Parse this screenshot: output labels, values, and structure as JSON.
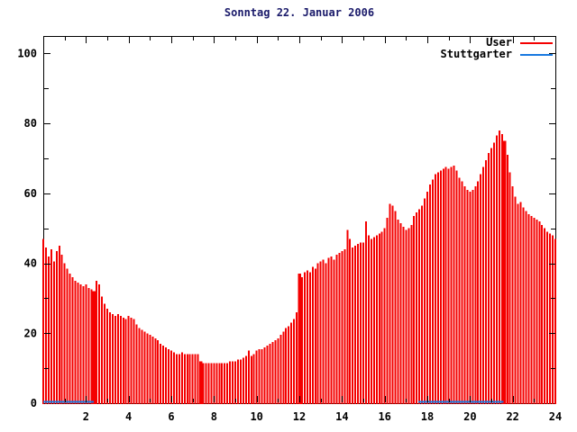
{
  "chart_data": {
    "type": "bar",
    "title": "Sonntag 22. Januar 2006",
    "xlabel": "",
    "ylabel": "",
    "xlim": [
      0,
      24
    ],
    "ylim": [
      0,
      105
    ],
    "grid": false,
    "legend_position": "top-right",
    "xticks": [
      2,
      4,
      6,
      8,
      10,
      12,
      14,
      16,
      18,
      20,
      22,
      24
    ],
    "yticks": [
      0,
      20,
      40,
      60,
      80,
      100
    ],
    "colors": {
      "user": "#f40000",
      "stuttgarter": "#1878e0",
      "title": "#1a1a6a",
      "axis": "#000000",
      "background": "#ffffff"
    },
    "start_hour": 0,
    "step_hours": 0.125,
    "series": [
      {
        "name": "User",
        "style": "impulses",
        "color": "#f40000",
        "highlight_indices": [
          19,
          59,
          96,
          173
        ],
        "values": [
          47,
          44.5,
          42,
          44,
          40.5,
          43.5,
          45,
          42.5,
          40,
          38.5,
          37,
          36,
          35,
          34.5,
          34,
          33.5,
          34,
          33,
          32.5,
          32,
          35,
          34,
          30.5,
          28.5,
          27,
          26,
          25.5,
          25,
          25.5,
          25,
          24.5,
          24,
          25,
          24.5,
          24,
          22.5,
          21.5,
          21,
          20.5,
          20,
          19.5,
          19,
          18.5,
          18,
          17,
          16.5,
          16,
          15.5,
          15,
          14.5,
          14,
          14,
          14.5,
          14,
          14,
          14,
          14,
          14,
          14,
          12,
          11.5,
          11.5,
          11.5,
          11.5,
          11.5,
          11.5,
          11.5,
          11.5,
          11.5,
          11.5,
          12,
          12,
          12,
          12.5,
          12.5,
          13,
          13.5,
          15,
          13.5,
          14,
          15,
          15.5,
          15.5,
          16,
          16.5,
          17,
          17.5,
          18,
          18.5,
          19.5,
          20.5,
          21.5,
          22,
          23,
          24,
          26,
          37,
          36,
          37.5,
          38,
          37.5,
          39,
          38.5,
          40,
          40.5,
          41,
          40,
          41.5,
          42,
          41,
          42.5,
          43,
          43.5,
          44,
          49.5,
          47,
          44.5,
          45,
          45.5,
          46,
          46,
          52,
          48,
          47,
          47.5,
          48,
          48.5,
          49,
          50,
          53,
          57,
          56.5,
          55,
          52.5,
          51.5,
          50.5,
          49.5,
          50,
          51,
          53.5,
          54.5,
          55.5,
          56.5,
          58.5,
          60.5,
          62.5,
          64,
          65.5,
          66,
          66.5,
          67,
          67.5,
          67,
          67.5,
          68,
          66.5,
          64.5,
          63.5,
          62,
          61,
          60.5,
          61,
          62,
          63.5,
          65.5,
          67.5,
          69.5,
          71.5,
          73,
          74.5,
          76.5,
          78,
          77,
          75,
          71,
          66,
          62,
          59,
          57,
          57.5,
          56,
          55,
          54,
          53.5,
          53,
          52.5,
          52,
          51,
          50,
          49,
          48.5,
          48,
          47
        ]
      },
      {
        "name": "Stuttgarter",
        "style": "line",
        "color": "#1878e0",
        "segments": [
          {
            "from_hour": 0.0,
            "to_hour": 2.37,
            "value": 0.4
          },
          {
            "from_hour": 17.58,
            "to_hour": 21.57,
            "value": 0.4
          }
        ]
      }
    ]
  }
}
